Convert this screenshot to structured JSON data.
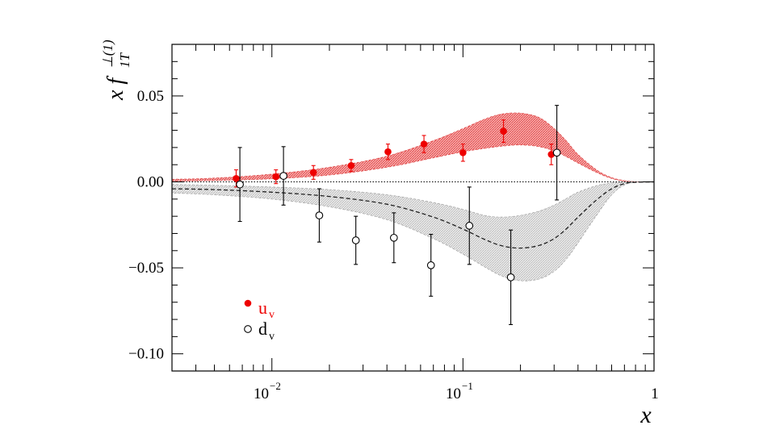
{
  "chart_data": {
    "type": "scatter",
    "xscale": "log",
    "xlim": [
      0.003,
      1
    ],
    "ylim": [
      -0.11,
      0.08
    ],
    "xlabel": "x",
    "ylabel": {
      "prefix": "x f",
      "sup": "⊥(1)",
      "sub": "1T"
    },
    "x_ticks": [
      {
        "value": 0.01,
        "label_base": "10",
        "label_exp": "−2"
      },
      {
        "value": 0.1,
        "label_base": "10",
        "label_exp": "−1"
      },
      {
        "value": 1,
        "label_base": "1",
        "label_exp": ""
      }
    ],
    "y_ticks": [
      {
        "value": 0.05,
        "label": "0.05"
      },
      {
        "value": 0.0,
        "label": "0.00"
      },
      {
        "value": -0.05,
        "label": "−0.05"
      },
      {
        "value": -0.1,
        "label": "−0.10"
      }
    ],
    "zero_line": true,
    "legend": {
      "position": "bottom-left",
      "entries": [
        {
          "series": "u_v",
          "label_base": "u",
          "label_sub": "v"
        },
        {
          "series": "d_v",
          "label_base": "d",
          "label_sub": "v"
        }
      ]
    },
    "series": [
      {
        "name": "u_v",
        "marker": "filled-circle",
        "color": "#ee0000",
        "points": [
          {
            "x": 0.0065,
            "y": 0.002,
            "err": 0.005
          },
          {
            "x": 0.0105,
            "y": 0.003,
            "err": 0.004
          },
          {
            "x": 0.0165,
            "y": 0.0055,
            "err": 0.004
          },
          {
            "x": 0.026,
            "y": 0.0095,
            "err": 0.0035
          },
          {
            "x": 0.0405,
            "y": 0.0175,
            "err": 0.0045
          },
          {
            "x": 0.0625,
            "y": 0.022,
            "err": 0.005
          },
          {
            "x": 0.1,
            "y": 0.017,
            "err": 0.005
          },
          {
            "x": 0.163,
            "y": 0.0295,
            "err": 0.0065
          },
          {
            "x": 0.29,
            "y": 0.016,
            "err": 0.006
          }
        ]
      },
      {
        "name": "d_v",
        "marker": "open-circle",
        "color": "#000000",
        "points": [
          {
            "x": 0.0068,
            "y": -0.0015,
            "err": 0.0215
          },
          {
            "x": 0.0115,
            "y": 0.0035,
            "err": 0.017
          },
          {
            "x": 0.0177,
            "y": -0.0195,
            "err": 0.0155
          },
          {
            "x": 0.0275,
            "y": -0.034,
            "err": 0.014
          },
          {
            "x": 0.0435,
            "y": -0.0325,
            "err": 0.0145
          },
          {
            "x": 0.068,
            "y": -0.0485,
            "err": 0.018
          },
          {
            "x": 0.108,
            "y": -0.0255,
            "err": 0.0225
          },
          {
            "x": 0.178,
            "y": -0.0555,
            "err": 0.0275
          },
          {
            "x": 0.31,
            "y": 0.017,
            "err": 0.0275
          }
        ]
      }
    ],
    "bands": [
      {
        "name": "u_v",
        "fill": "#f08080",
        "edge": "#e05050",
        "x": [
          0.003,
          0.005,
          0.01,
          0.02,
          0.04,
          0.07,
          0.1,
          0.13,
          0.16,
          0.2,
          0.25,
          0.3,
          0.35,
          0.4,
          0.5,
          0.6,
          0.7,
          0.8,
          1.0
        ],
        "lower": [
          0.0005,
          0.0008,
          0.0018,
          0.004,
          0.0085,
          0.014,
          0.0175,
          0.0195,
          0.0208,
          0.0215,
          0.0205,
          0.018,
          0.0145,
          0.011,
          0.0055,
          0.002,
          0.0005,
          0.0,
          0.0
        ],
        "upper": [
          0.0015,
          0.0022,
          0.0045,
          0.0085,
          0.015,
          0.024,
          0.031,
          0.0365,
          0.0395,
          0.04,
          0.0375,
          0.031,
          0.0235,
          0.016,
          0.007,
          0.0025,
          0.0007,
          0.0001,
          0.0
        ]
      },
      {
        "name": "d_v",
        "fill": "#dcdcdc",
        "edge": "#a8a8a8",
        "x": [
          0.003,
          0.005,
          0.01,
          0.02,
          0.04,
          0.07,
          0.1,
          0.13,
          0.16,
          0.2,
          0.25,
          0.3,
          0.35,
          0.4,
          0.5,
          0.6,
          0.7,
          0.8,
          1.0
        ],
        "lower": [
          -0.0065,
          -0.0075,
          -0.01,
          -0.0145,
          -0.022,
          -0.033,
          -0.042,
          -0.0495,
          -0.0548,
          -0.0575,
          -0.0565,
          -0.052,
          -0.0445,
          -0.0355,
          -0.0195,
          -0.0075,
          -0.0018,
          -0.0003,
          0.0
        ],
        "upper": [
          -0.0015,
          -0.002,
          -0.003,
          -0.0045,
          -0.0075,
          -0.012,
          -0.016,
          -0.0195,
          -0.0205,
          -0.0195,
          -0.017,
          -0.0135,
          -0.0095,
          -0.006,
          -0.0022,
          -0.0006,
          -0.0001,
          0.0,
          0.0
        ],
        "central_x": [
          0.003,
          0.005,
          0.01,
          0.02,
          0.04,
          0.07,
          0.1,
          0.13,
          0.16,
          0.2,
          0.25,
          0.3,
          0.35,
          0.4,
          0.5,
          0.6,
          0.7,
          0.8,
          1.0
        ],
        "central_y": [
          -0.004,
          -0.0045,
          -0.006,
          -0.0085,
          -0.013,
          -0.0205,
          -0.0275,
          -0.0335,
          -0.0372,
          -0.0385,
          -0.037,
          -0.033,
          -0.027,
          -0.0205,
          -0.0105,
          -0.004,
          -0.001,
          -0.0002,
          0.0
        ]
      }
    ]
  }
}
